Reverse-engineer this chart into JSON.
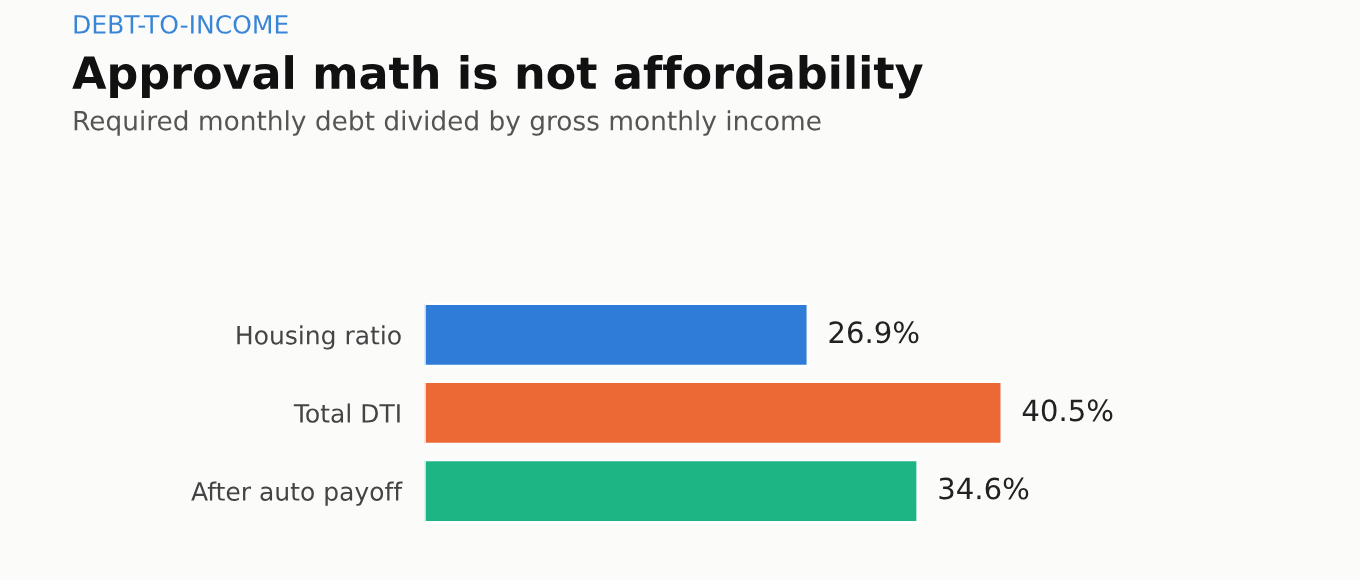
{
  "chart_data": {
    "type": "bar",
    "orientation": "horizontal",
    "title": "Approval math is not affordability",
    "subtitle": "Required monthly debt divided by gross monthly income",
    "annotations": [
      "DEBT-TO-INCOME"
    ],
    "categories": [
      "Housing ratio",
      "Total DTI",
      "After auto payoff"
    ],
    "values": [
      26.9,
      40.5,
      34.6
    ],
    "value_labels": [
      "26.9%",
      "40.5%",
      "34.6%"
    ],
    "colors": [
      "#2f7bd8",
      "#ec6936",
      "#1eb585"
    ]
  }
}
